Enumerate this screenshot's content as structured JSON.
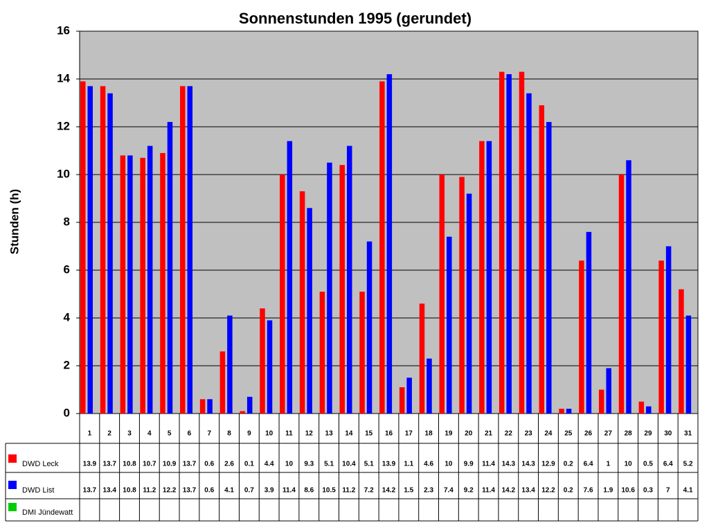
{
  "chart_data": {
    "type": "bar",
    "title": "Sonnenstunden 1995 (gerundet)",
    "y_label": "Stunden (h)",
    "categories": [
      "1",
      "2",
      "3",
      "4",
      "5",
      "6",
      "7",
      "8",
      "9",
      "10",
      "11",
      "12",
      "13",
      "14",
      "15",
      "16",
      "17",
      "18",
      "19",
      "20",
      "21",
      "22",
      "23",
      "24",
      "25",
      "26",
      "27",
      "28",
      "29",
      "30",
      "31"
    ],
    "series": [
      {
        "name": "DWD Leck",
        "color": "#ff0000",
        "values": [
          13.9,
          13.7,
          10.8,
          10.7,
          10.9,
          13.7,
          0.6,
          2.6,
          0.1,
          4.4,
          10,
          9.3,
          5.1,
          10.4,
          5.1,
          13.9,
          1.1,
          4.6,
          10,
          9.9,
          11.4,
          14.3,
          14.3,
          12.9,
          0.2,
          6.4,
          1,
          10,
          0.5,
          6.4,
          5.2
        ]
      },
      {
        "name": "DWD List",
        "color": "#0000ff",
        "values": [
          13.7,
          13.4,
          10.8,
          11.2,
          12.2,
          13.7,
          0.6,
          4.1,
          0.7,
          3.9,
          11.4,
          8.6,
          10.5,
          11.2,
          7.2,
          14.2,
          1.5,
          2.3,
          7.4,
          9.2,
          11.4,
          14.2,
          13.4,
          12.2,
          0.2,
          7.6,
          1.9,
          10.6,
          0.3,
          7,
          4.1
        ]
      },
      {
        "name": "DMI Jündewatt",
        "color": "#00cc00",
        "values": [
          null,
          null,
          null,
          null,
          null,
          null,
          null,
          null,
          null,
          null,
          null,
          null,
          null,
          null,
          null,
          null,
          null,
          null,
          null,
          null,
          null,
          null,
          null,
          null,
          null,
          null,
          null,
          null,
          null,
          null,
          null
        ]
      }
    ],
    "ylim": [
      0,
      16
    ],
    "yticks": [
      0,
      2,
      4,
      6,
      8,
      10,
      12,
      14,
      16
    ],
    "grid": true,
    "plot_background": "#c0c0c0",
    "data_table": true
  }
}
